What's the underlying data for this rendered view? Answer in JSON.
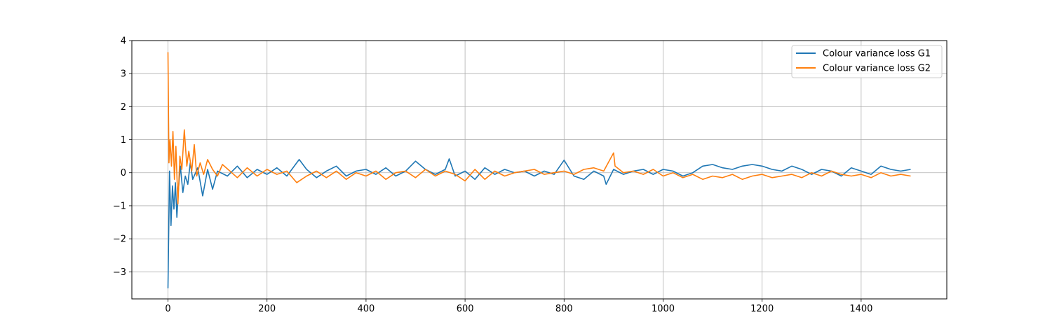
{
  "chart_data": {
    "type": "line",
    "title": "",
    "xlabel": "",
    "ylabel": "",
    "xlim": [
      -73,
      1573
    ],
    "ylim": [
      -3.82,
      4.0
    ],
    "x_ticks": [
      0,
      200,
      400,
      600,
      800,
      1000,
      1200,
      1400
    ],
    "y_ticks": [
      -3,
      -2,
      -1,
      0,
      1,
      2,
      3,
      4
    ],
    "grid": true,
    "legend_position": "upper-right",
    "series": [
      {
        "name": "Colour variance loss G1",
        "color": "#1f77b4",
        "x": [
          0,
          3,
          6,
          9,
          12,
          15,
          18,
          21,
          25,
          30,
          35,
          40,
          45,
          50,
          60,
          70,
          80,
          90,
          100,
          120,
          140,
          160,
          180,
          200,
          220,
          240,
          265,
          280,
          300,
          320,
          340,
          360,
          380,
          400,
          420,
          440,
          460,
          480,
          500,
          520,
          540,
          560,
          568,
          580,
          600,
          620,
          640,
          660,
          680,
          700,
          720,
          740,
          760,
          780,
          800,
          820,
          840,
          860,
          880,
          885,
          900,
          920,
          940,
          960,
          980,
          1000,
          1020,
          1040,
          1060,
          1080,
          1100,
          1120,
          1140,
          1160,
          1180,
          1200,
          1220,
          1240,
          1260,
          1280,
          1300,
          1320,
          1340,
          1360,
          1380,
          1400,
          1420,
          1440,
          1460,
          1480,
          1500
        ],
        "y": [
          -3.5,
          0.05,
          -1.6,
          -0.4,
          -1.1,
          -0.3,
          -1.35,
          -0.5,
          0.2,
          -0.6,
          -0.1,
          -0.35,
          0.3,
          -0.2,
          0.15,
          -0.7,
          0.1,
          -0.5,
          0.05,
          -0.1,
          0.2,
          -0.15,
          0.1,
          -0.05,
          0.15,
          -0.1,
          0.4,
          0.1,
          -0.15,
          0.05,
          0.2,
          -0.1,
          0.05,
          0.1,
          -0.05,
          0.15,
          -0.1,
          0.05,
          0.35,
          0.1,
          -0.05,
          0.1,
          0.42,
          -0.1,
          0.05,
          -0.2,
          0.15,
          -0.05,
          0.1,
          0.0,
          0.05,
          -0.1,
          0.05,
          -0.05,
          0.38,
          -0.1,
          -0.2,
          0.05,
          -0.1,
          -0.35,
          0.1,
          -0.05,
          0.05,
          0.1,
          -0.05,
          0.1,
          0.05,
          -0.1,
          0.0,
          0.2,
          0.25,
          0.15,
          0.1,
          0.2,
          0.25,
          0.2,
          0.1,
          0.05,
          0.2,
          0.1,
          -0.05,
          0.1,
          0.05,
          -0.1,
          0.15,
          0.05,
          -0.05,
          0.2,
          0.1,
          0.05,
          0.1
        ]
      },
      {
        "name": "Colour variance loss G2",
        "color": "#ff7f0e",
        "x": [
          0,
          2,
          4,
          7,
          10,
          13,
          16,
          20,
          24,
          28,
          33,
          38,
          42,
          48,
          53,
          58,
          65,
          72,
          80,
          90,
          100,
          110,
          125,
          140,
          160,
          180,
          200,
          220,
          240,
          260,
          280,
          300,
          320,
          340,
          360,
          380,
          400,
          420,
          440,
          460,
          480,
          500,
          520,
          540,
          560,
          580,
          600,
          620,
          640,
          660,
          680,
          700,
          720,
          740,
          760,
          780,
          800,
          820,
          840,
          860,
          880,
          900,
          903,
          920,
          940,
          960,
          980,
          1000,
          1020,
          1040,
          1060,
          1080,
          1100,
          1120,
          1140,
          1160,
          1180,
          1200,
          1220,
          1240,
          1260,
          1280,
          1300,
          1320,
          1340,
          1360,
          1380,
          1400,
          1420,
          1440,
          1460,
          1480,
          1500
        ],
        "y": [
          3.65,
          0.3,
          1.0,
          0.2,
          1.25,
          -0.2,
          0.8,
          -0.95,
          0.5,
          0.1,
          1.3,
          0.2,
          0.65,
          0.05,
          0.85,
          -0.1,
          0.3,
          -0.05,
          0.4,
          0.1,
          -0.1,
          0.25,
          0.05,
          -0.15,
          0.15,
          -0.1,
          0.1,
          -0.05,
          0.05,
          -0.3,
          -0.1,
          0.05,
          -0.15,
          0.05,
          -0.2,
          0.0,
          -0.1,
          0.05,
          -0.2,
          0.0,
          0.05,
          -0.15,
          0.1,
          -0.1,
          0.05,
          -0.05,
          -0.25,
          0.1,
          -0.2,
          0.05,
          -0.1,
          0.0,
          0.05,
          0.1,
          -0.05,
          0.0,
          0.05,
          -0.05,
          0.1,
          0.15,
          0.05,
          0.6,
          0.2,
          0.0,
          0.05,
          -0.05,
          0.1,
          -0.1,
          0.0,
          -0.15,
          -0.05,
          -0.2,
          -0.1,
          -0.15,
          -0.05,
          -0.2,
          -0.1,
          -0.05,
          -0.15,
          -0.1,
          -0.05,
          -0.15,
          0.0,
          -0.1,
          0.05,
          -0.05,
          -0.1,
          -0.05,
          -0.15,
          0.0,
          -0.1,
          -0.05,
          -0.1
        ]
      }
    ]
  }
}
